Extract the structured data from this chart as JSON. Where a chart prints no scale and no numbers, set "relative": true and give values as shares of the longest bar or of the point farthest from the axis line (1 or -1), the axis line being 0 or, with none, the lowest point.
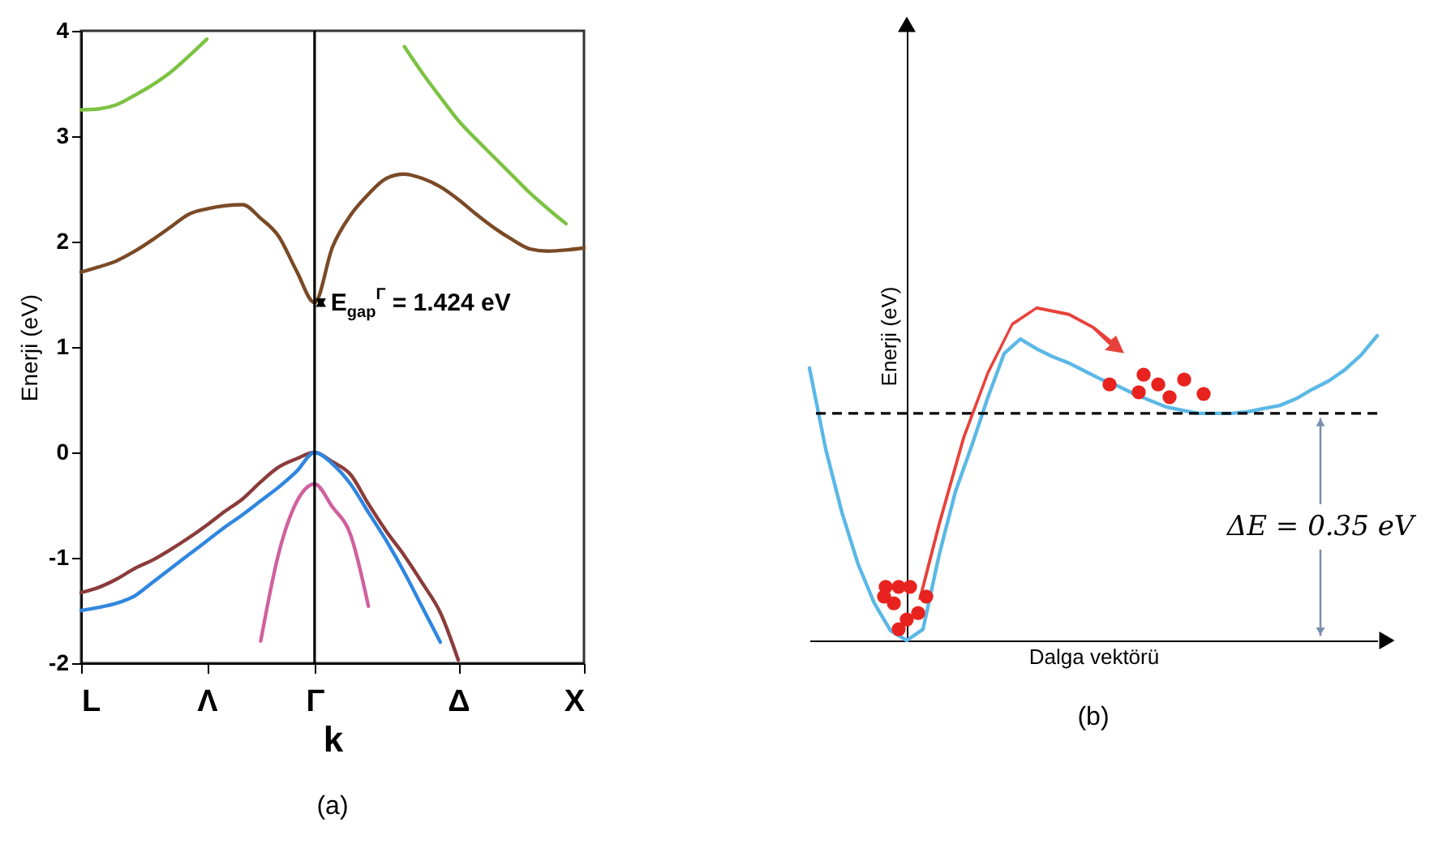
{
  "chart_data": [
    {
      "type": "line",
      "title": "(a)",
      "xlabel": "k",
      "ylabel": "Enerji (eV)",
      "ylim": [
        -2,
        4
      ],
      "yticks": [
        -2,
        -1,
        0,
        1,
        2,
        3,
        4
      ],
      "categories": [
        "L",
        null,
        null,
        null,
        null,
        null,
        null,
        "Λ",
        null,
        null,
        null,
        null,
        null,
        "Γ",
        null,
        null,
        null,
        null,
        null,
        null,
        null,
        "Δ",
        null,
        null,
        null,
        null,
        null,
        null,
        "X"
      ],
      "series": [
        {
          "color": "#7cc242",
          "values": [
            3.25,
            3.26,
            3.3,
            3.39,
            3.49,
            3.61,
            3.76,
            3.92,
            null,
            null,
            null,
            null,
            null,
            null,
            null,
            null,
            null,
            null,
            null,
            null,
            null,
            null,
            null,
            null,
            null,
            null,
            null,
            null,
            null
          ]
        },
        {
          "color": "#7cc242",
          "values": [
            null,
            null,
            null,
            null,
            null,
            null,
            null,
            null,
            null,
            null,
            null,
            null,
            null,
            null,
            null,
            null,
            null,
            null,
            3.85,
            3.6,
            3.37,
            3.15,
            2.97,
            2.8,
            2.63,
            2.46,
            2.31,
            2.17,
            null
          ]
        },
        {
          "color": "#7a4a26",
          "values": [
            1.71,
            1.76,
            1.82,
            1.91,
            2.02,
            2.14,
            2.26,
            2.31,
            2.34,
            2.35,
            2.22,
            2.05,
            1.72,
            1.42,
            1.95,
            2.25,
            2.45,
            2.6,
            2.64,
            2.6,
            2.52,
            2.4,
            2.26,
            2.13,
            2.02,
            1.93,
            1.91,
            1.92,
            1.94
          ]
        },
        {
          "color": "#8b3b3b",
          "values": [
            -1.33,
            -1.28,
            -1.2,
            -1.1,
            -1.02,
            -0.92,
            -0.81,
            -0.69,
            -0.56,
            -0.44,
            -0.28,
            -0.14,
            -0.06,
            0,
            -0.09,
            -0.21,
            -0.49,
            -0.75,
            -0.98,
            -1.24,
            -1.52,
            -1.97,
            null,
            null,
            null,
            null,
            null,
            null,
            null
          ]
        },
        {
          "color": "#2f86e0",
          "values": [
            -1.5,
            -1.47,
            -1.43,
            -1.36,
            -1.23,
            -1.1,
            -0.97,
            -0.84,
            -0.71,
            -0.59,
            -0.46,
            -0.33,
            -0.18,
            0,
            -0.11,
            -0.3,
            -0.57,
            -0.84,
            -1.14,
            -1.47,
            -1.8,
            null,
            null,
            null,
            null,
            null,
            null,
            null,
            null
          ]
        },
        {
          "color": "#d0609e",
          "values": [
            null,
            null,
            null,
            null,
            null,
            null,
            null,
            null,
            null,
            null,
            -1.79,
            -0.96,
            -0.47,
            -0.3,
            -0.52,
            -0.78,
            -1.46,
            null,
            null,
            null,
            null,
            null,
            null,
            null,
            null,
            null,
            null,
            null,
            null
          ]
        }
      ],
      "ref_lines": [
        {
          "axis": "x",
          "value": "Γ",
          "color": "#000000"
        }
      ],
      "annotations": [
        {
          "text": "E$_{gap}$$^{Γ}$ = 1.424 eV",
          "x": "Γ",
          "y": 1.424
        }
      ]
    },
    {
      "type": "line",
      "title": "(b)",
      "xlabel": "Dalga vektörü",
      "ylabel": "Enerji (eV)",
      "relative": true,
      "categories": [
        null,
        null,
        null,
        null,
        null,
        null,
        null,
        null,
        null,
        null,
        null,
        null,
        null,
        null,
        null,
        null,
        null,
        null,
        null,
        null,
        null,
        null,
        null,
        null,
        null,
        null,
        null,
        null,
        null,
        null,
        null,
        null,
        null,
        null,
        null,
        null
      ],
      "series": [
        {
          "color": "#5bb8e6",
          "values": [
            0.894,
            0.628,
            0.42,
            0.25,
            0.122,
            0.032,
            0,
            0.037,
            0.282,
            0.489,
            0.638,
            0.798,
            0.941,
            0.989,
            0.957,
            0.931,
            0.91,
            0.883,
            0.856,
            0.835,
            0.809,
            0.787,
            0.766,
            0.755,
            0.745,
            0.745,
            0.745,
            0.75,
            0.761,
            0.771,
            0.793,
            0.824,
            0.851,
            0.888,
            0.936,
            1
          ]
        }
      ],
      "ref_lines": [
        {
          "axis": "y",
          "value": 0.745,
          "color": "#000000",
          "line_style": "dashed"
        }
      ],
      "annotations": [
        "ΔE = 0.35 eV"
      ]
    }
  ]
}
